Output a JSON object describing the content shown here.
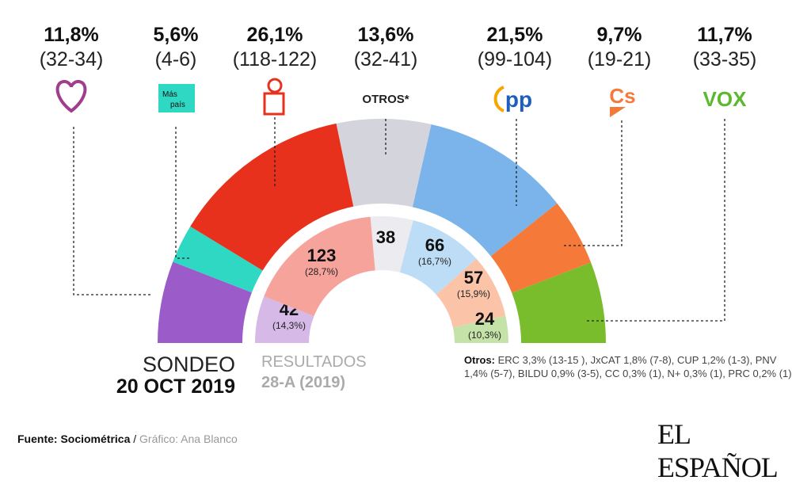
{
  "chart_data": {
    "type": "pie",
    "subtype": "hemicycle",
    "outer_ring": {
      "label": "SONDEO",
      "date": "20 OCT 2019",
      "parties": [
        {
          "logo": "unidas-podemos",
          "pct": "11,8%",
          "range": "(32-34)",
          "value": 11.8,
          "color": "#9b5bc8"
        },
        {
          "logo": "mas-pais",
          "logo_text": "Más país",
          "pct": "5,6%",
          "range": "(4-6)",
          "value": 5.6,
          "color": "#2fd8c2"
        },
        {
          "logo": "psoe",
          "pct": "26,1%",
          "range": "(118-122)",
          "value": 26.1,
          "color": "#e8311d"
        },
        {
          "logo": "otros",
          "logo_text": "OTROS*",
          "pct": "13,6%",
          "range": "(32-41)",
          "value": 13.6,
          "color": "#d4d5dc"
        },
        {
          "logo": "pp",
          "logo_text": "PP",
          "pct": "21,5%",
          "range": "(99-104)",
          "value": 21.5,
          "color": "#7ab4ea"
        },
        {
          "logo": "cs",
          "logo_text": "Cs",
          "pct": "9,7%",
          "range": "(19-21)",
          "value": 9.7,
          "color": "#f57a3a"
        },
        {
          "logo": "vox",
          "logo_text": "VOX",
          "pct": "11,7%",
          "range": "(33-35)",
          "value": 11.7,
          "color": "#79bd2d"
        }
      ]
    },
    "inner_ring": {
      "label": "RESULTADOS",
      "date": "28-A (2019)",
      "parties": [
        {
          "seats": 42,
          "seats_label": "42",
          "pct": "(14,3%)",
          "color": "#d6b9e7"
        },
        {
          "seats": 123,
          "seats_label": "123",
          "pct": "(28,7%)",
          "color": "#f6a39c"
        },
        {
          "seats": 38,
          "seats_label": "38",
          "pct": "",
          "color": "#ebebf0"
        },
        {
          "seats": 66,
          "seats_label": "66",
          "pct": "(16,7%)",
          "color": "#bddcf5"
        },
        {
          "seats": 57,
          "seats_label": "57",
          "pct": "(15,9%)",
          "color": "#fbc4a9"
        },
        {
          "seats": 24,
          "seats_label": "24",
          "pct": "(10,3%)",
          "color": "#c5e3a9"
        }
      ]
    }
  },
  "otros_note": {
    "label": "Otros:",
    "text": "ERC 3,3% (13-15 ), JxCAT 1,8% (7-8), CUP 1,2% (1-3), PNV  1,4% (5-7), BILDU 0,9% (3-5),  CC  0,3% (1), N+ 0,3% (1), PRC 0,2% (1)"
  },
  "source": {
    "label": "Fuente: Sociométrica",
    "separator": " / ",
    "credit": "Gráfico: Ana Blanco"
  },
  "brand": "EL ESPAÑOL"
}
